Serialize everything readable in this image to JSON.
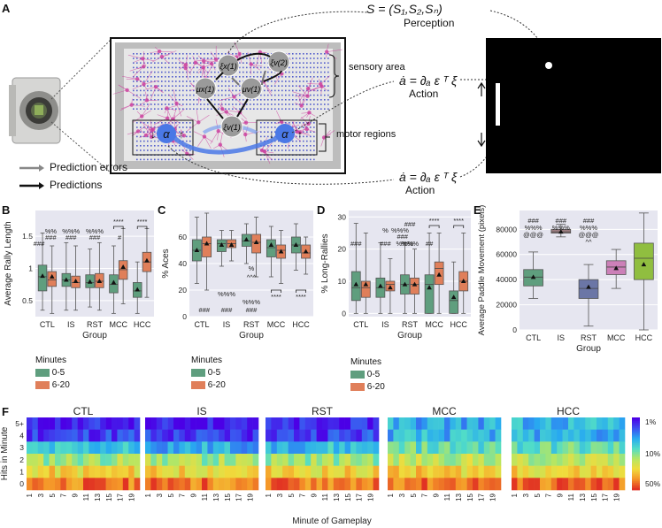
{
  "panel_letters": {
    "A": "A",
    "B": "B",
    "C": "C",
    "D": "D",
    "E": "E",
    "F": "F"
  },
  "panelA": {
    "perception_eq": "S = (S₁,S₂,Sₙ)",
    "perception_label": "Perception",
    "action_eq_top": "ȧ = ∂ₐ ε ᵀ ξ",
    "action_label_top": "Action",
    "action_eq_bottom": "ȧ = ∂ₐ ε ᵀ ξ",
    "action_label_bottom": "Action",
    "sensory_area": "sensory area",
    "motor_regions": "motor regions",
    "legend_errors": "Prediction errors",
    "legend_predictions": "Predictions",
    "node_xi_x1": "ξx(1)",
    "node_xi_v2": "ξv(2)",
    "node_mu_x1": "μx(1)",
    "node_mu_v1": "μv(1)",
    "node_xi_v1": "ξv(1)",
    "node_alpha": "α",
    "colors": {
      "grid_pink": "#cc3f9e",
      "grid_blue": "#3845c8",
      "alpha": "#4a78e6"
    }
  },
  "legend_minutes": {
    "title": "Minutes",
    "item1": "0-5",
    "item2": "6-20",
    "color1": "#5f9e7e",
    "color2": "#e07f5a"
  },
  "chart_data": [
    {
      "panel": "B",
      "type": "box",
      "ylabel": "Average Rally Length",
      "xlabel": "Group",
      "categories": [
        "CTL",
        "IS",
        "RST",
        "MCC",
        "HCC"
      ],
      "ylim": [
        0.25,
        1.9
      ],
      "yticks": [
        0.5,
        1.0,
        1.5
      ],
      "series": [
        {
          "name": "0-5",
          "boxes": [
            [
              0.35,
              0.65,
              0.87,
              1.05,
              1.55
            ],
            [
              0.35,
              0.72,
              0.82,
              0.92,
              1.4
            ],
            [
              0.4,
              0.7,
              0.78,
              0.9,
              1.3
            ],
            [
              0.3,
              0.62,
              0.75,
              0.9,
              1.35
            ],
            [
              0.3,
              0.55,
              0.65,
              0.78,
              1.1
            ]
          ],
          "means": [
            0.88,
            0.82,
            0.79,
            0.78,
            0.67
          ]
        },
        {
          "name": "6-20",
          "boxes": [
            [
              0.3,
              0.72,
              0.82,
              0.95,
              1.35
            ],
            [
              0.35,
              0.7,
              0.78,
              0.88,
              1.35
            ],
            [
              0.35,
              0.7,
              0.8,
              0.92,
              1.4
            ],
            [
              0.45,
              0.83,
              0.98,
              1.12,
              1.62
            ],
            [
              0.55,
              0.95,
              1.1,
              1.25,
              1.62
            ]
          ],
          "means": [
            0.87,
            0.8,
            0.8,
            1.02,
            1.12
          ]
        }
      ],
      "annotations": [
        "###",
        "%%",
        "###",
        "%%%",
        "###",
        "%%%",
        "###",
        "****",
        "#",
        "****"
      ]
    },
    {
      "panel": "C",
      "type": "box",
      "ylabel": "% Aces",
      "xlabel": "Group",
      "categories": [
        "CTL",
        "IS",
        "RST",
        "MCC",
        "HCC"
      ],
      "ylim": [
        0,
        80
      ],
      "yticks": [
        0,
        20,
        40,
        60
      ],
      "series": [
        {
          "name": "0-5",
          "boxes": [
            [
              25,
              42,
              50,
              58,
              75
            ],
            [
              38,
              49,
              55,
              58,
              65
            ],
            [
              40,
              53,
              57,
              62,
              70
            ],
            [
              30,
              45,
              52,
              58,
              68
            ],
            [
              35,
              48,
              54,
              60,
              70
            ]
          ],
          "means": [
            50,
            54,
            58,
            54,
            54
          ]
        },
        {
          "name": "6-20",
          "boxes": [
            [
              20,
              45,
              55,
              60,
              78
            ],
            [
              42,
              52,
              55,
              58,
              65
            ],
            [
              30,
              48,
              56,
              62,
              75
            ],
            [
              25,
              44,
              50,
              54,
              65
            ],
            [
              32,
              44,
              48,
              54,
              60
            ]
          ],
          "means": [
            55,
            54,
            56,
            49,
            49
          ]
        }
      ],
      "annotations": [
        "###",
        "%%%",
        "###",
        "%",
        "^^^",
        "%%%",
        "###",
        "****",
        "****"
      ]
    },
    {
      "panel": "D",
      "type": "box",
      "ylabel": "% Long-Rallies",
      "xlabel": "Group",
      "categories": [
        "CTL",
        "IS",
        "RST",
        "MCC",
        "HCC"
      ],
      "ylim": [
        -1,
        32
      ],
      "yticks": [
        0,
        10,
        20,
        30
      ],
      "series": [
        {
          "name": "0-5",
          "boxes": [
            [
              0,
              4,
              8,
              13,
              28
            ],
            [
              0,
              5,
              8,
              11,
              22
            ],
            [
              0,
              6,
              9,
              12,
              22
            ],
            [
              0,
              0,
              9,
              12,
              25
            ],
            [
              0,
              0,
              4,
              7,
              16
            ]
          ],
          "means": [
            9,
            8.5,
            9,
            8,
            5
          ]
        },
        {
          "name": "6-20",
          "boxes": [
            [
              0,
              5,
              8,
              10,
              25
            ],
            [
              0,
              7,
              9,
              10,
              17
            ],
            [
              0,
              6,
              9,
              11,
              20
            ],
            [
              0,
              9,
              14,
              16,
              25
            ],
            [
              0,
              7,
              10,
              13,
              25
            ]
          ],
          "means": [
            9,
            8,
            9,
            12,
            10
          ]
        }
      ],
      "annotations": [
        "###",
        "%",
        "###",
        "%%%",
        "###",
        "%%%",
        "###",
        "%%%",
        "##",
        "****",
        "****"
      ]
    },
    {
      "panel": "E",
      "type": "box",
      "ylabel": "Average Paddle Movement (pixels)",
      "xlabel": "Group",
      "categories": [
        "CTL",
        "IS",
        "RST",
        "MCC",
        "HCC"
      ],
      "ylim": [
        0,
        95000
      ],
      "yticks": [
        0,
        20000,
        40000,
        60000,
        80000
      ],
      "colors": [
        "#5f9e7e",
        "#9e7e82",
        "#6b76a6",
        "#cc80b8",
        "#90be40"
      ],
      "boxes": [
        [
          25000,
          35000,
          42000,
          48000,
          62000
        ],
        [
          74000,
          77000,
          78000,
          80000,
          84000
        ],
        [
          3000,
          25000,
          33000,
          40000,
          52000
        ],
        [
          33000,
          44000,
          50000,
          55000,
          64000
        ],
        [
          0,
          40000,
          57000,
          69000,
          93000
        ]
      ],
      "means": [
        42000,
        78000,
        34000,
        49000,
        52000
      ],
      "annotations": [
        "###",
        "%%%",
        "@@@",
        "###",
        "%%%",
        "%%%",
        "###",
        "%%%",
        "@@@",
        "^^"
      ]
    },
    {
      "panel": "F",
      "type": "heatmap",
      "ylabel": "Hits in Minute",
      "xlabel": "Minute of Gameplay",
      "panels": [
        "CTL",
        "IS",
        "RST",
        "MCC",
        "HCC"
      ],
      "y_categories": [
        "5+",
        "4",
        "3",
        "2",
        "1",
        "0"
      ],
      "x_ticks": [
        "1",
        "3",
        "5",
        "7",
        "9",
        "11",
        "13",
        "15",
        "17",
        "19"
      ],
      "colorbar_ticks": [
        "1%",
        "10%",
        "50%"
      ]
    }
  ]
}
